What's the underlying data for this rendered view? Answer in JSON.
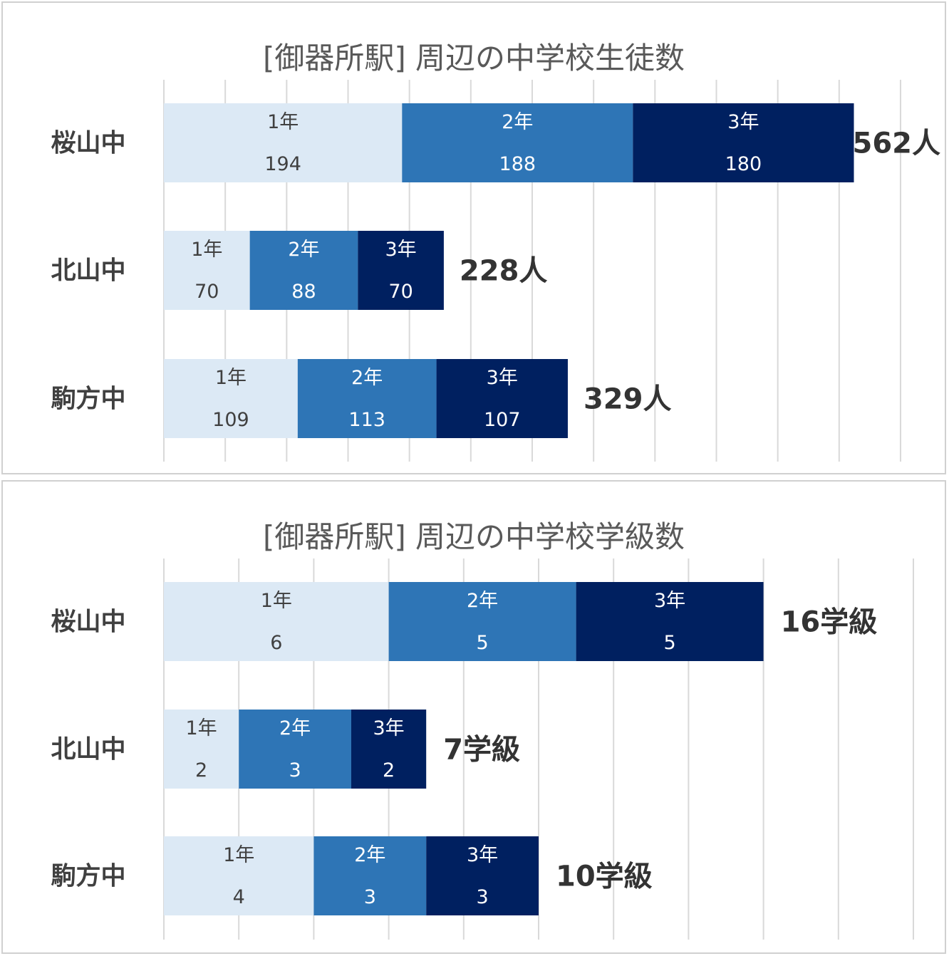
{
  "colors": {
    "grade1": "#dce9f5",
    "grade2": "#2e75b6",
    "grade3": "#002060",
    "grid": "#d9d9d9",
    "text_light_bg": "#404040",
    "text_dark_bg": "#ffffff"
  },
  "chart_data": [
    {
      "type": "bar",
      "orientation": "horizontal",
      "stacked": true,
      "title": "[御器所駅] 周辺の中学校生徒数",
      "categories": [
        "桜山中",
        "北山中",
        "駒方中"
      ],
      "series": [
        {
          "name": "1年",
          "values": [
            194,
            70,
            109
          ]
        },
        {
          "name": "2年",
          "values": [
            188,
            88,
            113
          ]
        },
        {
          "name": "3年",
          "values": [
            180,
            70,
            107
          ]
        }
      ],
      "totals": [
        "562人",
        "228人",
        "329人"
      ],
      "xlim": [
        0,
        600
      ],
      "grid_step": 50,
      "grid": true
    },
    {
      "type": "bar",
      "orientation": "horizontal",
      "stacked": true,
      "title": "[御器所駅] 周辺の中学校学級数",
      "categories": [
        "桜山中",
        "北山中",
        "駒方中"
      ],
      "series": [
        {
          "name": "1年",
          "values": [
            6,
            2,
            4
          ]
        },
        {
          "name": "2年",
          "values": [
            5,
            3,
            3
          ]
        },
        {
          "name": "3年",
          "values": [
            5,
            2,
            3
          ]
        }
      ],
      "totals": [
        "16学級",
        "7学級",
        "10学級"
      ],
      "xlim": [
        0,
        20
      ],
      "grid_step": 2,
      "grid": true
    }
  ]
}
